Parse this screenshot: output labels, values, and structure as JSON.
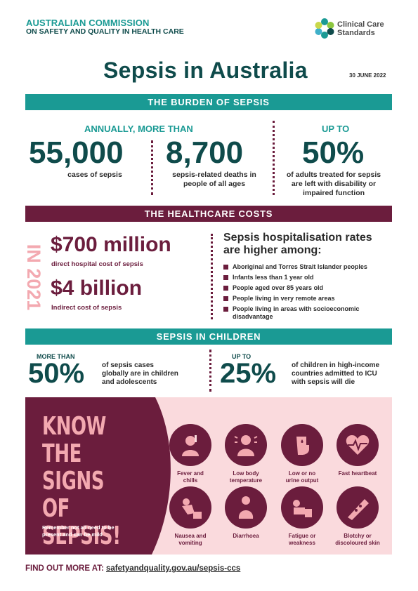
{
  "header": {
    "org_line1": "AUSTRALIAN COMMISSION",
    "org_line2": "ON SAFETY AND QUALITY IN HEALTH CARE",
    "ccs_line1": "Clinical Care",
    "ccs_line2": "Standards",
    "title": "Sepsis in Australia",
    "date": "30 JUNE 2022"
  },
  "burden": {
    "band": "THE BURDEN OF SEPSIS",
    "annually": "ANNUALLY, MORE THAN",
    "cases_value": "55,000",
    "cases_caption": "cases of sepsis",
    "deaths_value": "8,700",
    "deaths_caption_l1": "sepsis-related deaths in",
    "deaths_caption_l2": "people of all ages",
    "upto": "UP TO",
    "pct_value": "50%",
    "pct_caption_l1": "of adults treated for sepsis",
    "pct_caption_l2": "are left with disability or",
    "pct_caption_l3": "impaired function"
  },
  "costs": {
    "band": "THE HEALTHCARE COSTS",
    "year_label": "IN 2021",
    "direct_value": "$700 million",
    "direct_caption": "direct hospital cost of sepsis",
    "indirect_value": "$4 billion",
    "indirect_caption": "Indirect cost of sepsis",
    "rates_heading_l1": "Sepsis hospitalisation rates",
    "rates_heading_l2": "are higher among:",
    "rates": [
      "Aboriginal and Torres Strait Islander peoples",
      "Infants less than 1 year old",
      "People aged over 85 years old",
      "People living in very remote areas",
      "People living in areas with socioeconomic disadvantage"
    ]
  },
  "children": {
    "band": "SEPSIS IN CHILDREN",
    "more_than": "MORE THAN",
    "pct1": "50%",
    "cap1_l1": "of sepsis cases",
    "cap1_l2": "globally are in children",
    "cap1_l3": "and adolescents",
    "upto": "UP TO",
    "pct2": "25%",
    "cap2_l1": "of children in high-income",
    "cap2_l2": "countries admitted to ICU",
    "cap2_l3": "with sepsis will die"
  },
  "signs": {
    "heading_l1": "KNOW THE",
    "heading_l2": "SIGNS OF",
    "heading_l3": "SEPSIS!",
    "remember_l1": "Remember not all need to be",
    "remember_l2": "present and can be mild",
    "items": [
      {
        "l1": "Fever and",
        "l2": "chills"
      },
      {
        "l1": "Low body",
        "l2": "temperature"
      },
      {
        "l1": "Low or no",
        "l2": "urine output"
      },
      {
        "l1": "Fast heartbeat",
        "l2": ""
      },
      {
        "l1": "Nausea and",
        "l2": "vomiting"
      },
      {
        "l1": "Diarrhoea",
        "l2": ""
      },
      {
        "l1": "Fatigue or",
        "l2": "weakness"
      },
      {
        "l1": "Blotchy or",
        "l2": "discoloured skin"
      }
    ]
  },
  "footer": {
    "find_out": "FIND OUT MORE AT:",
    "url": "safetyandquality.gov.au/sepsis-ccs"
  },
  "colors": {
    "teal": "#1a9a94",
    "dark_teal": "#0f4b4b",
    "maroon": "#6b1d3d",
    "pink": "#fadadd",
    "light_pink": "#f3a9b0"
  }
}
